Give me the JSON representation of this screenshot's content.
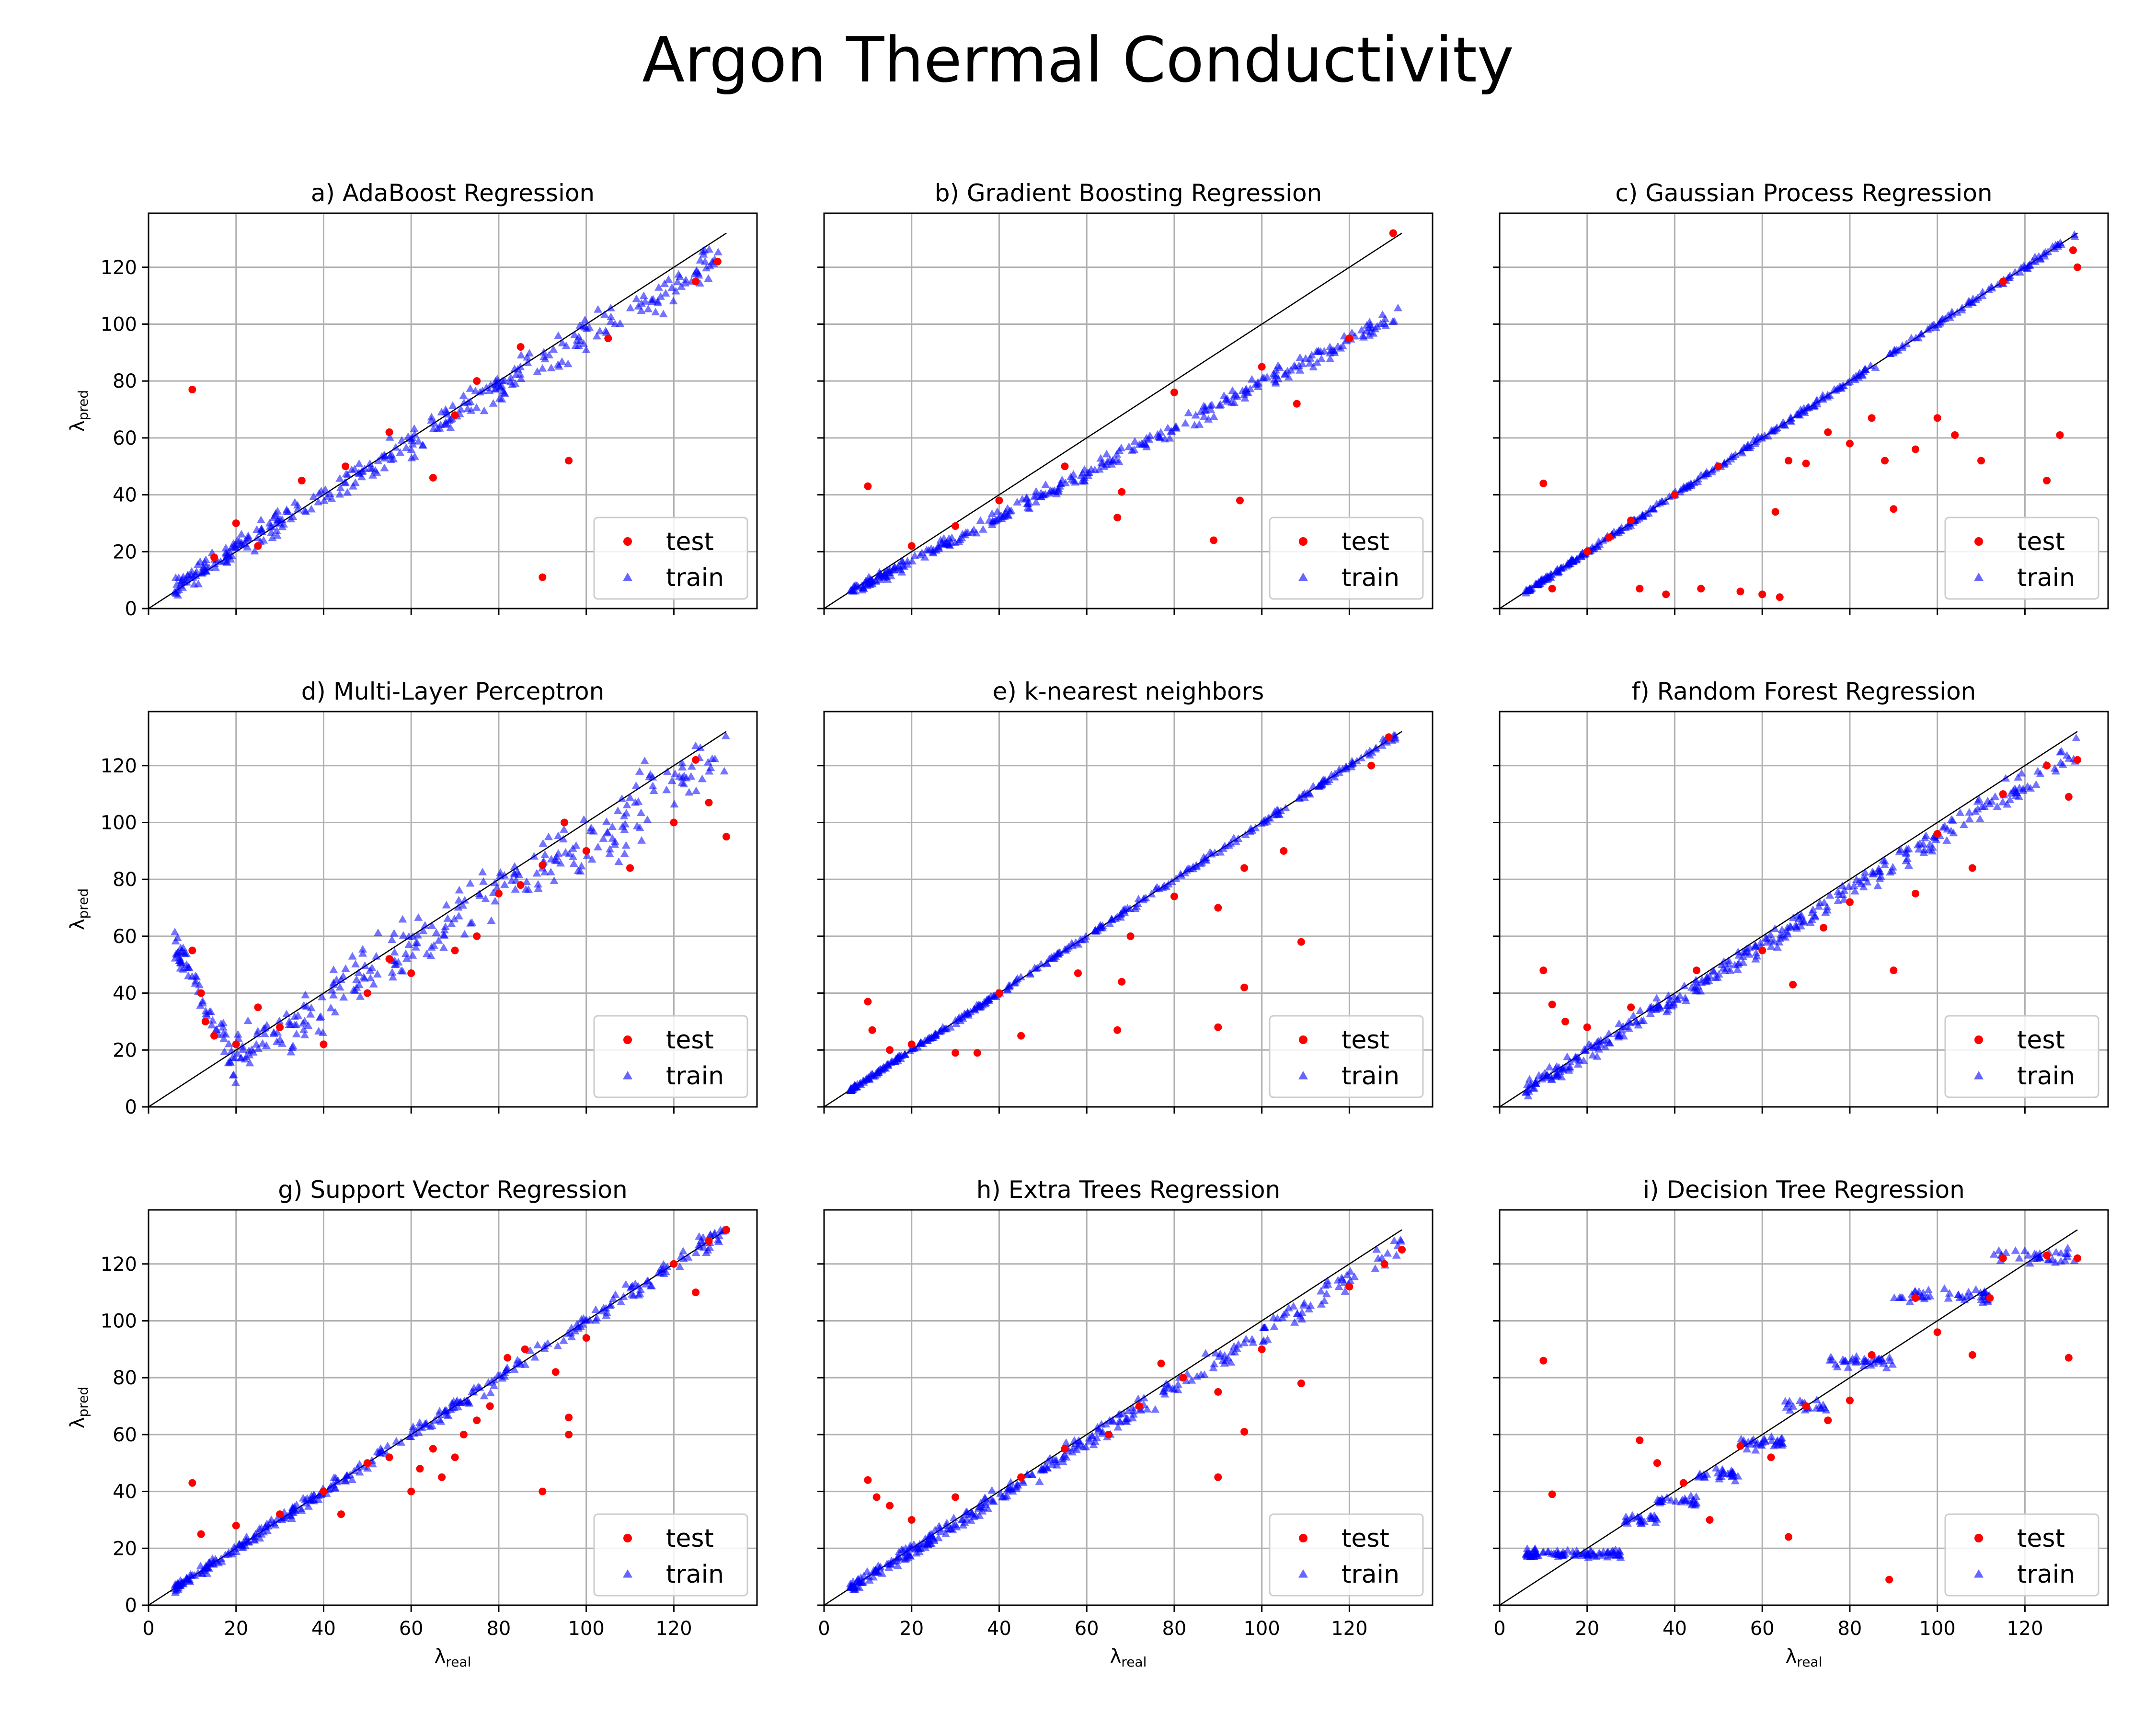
{
  "figure": {
    "suptitle": "Argon Thermal Conductivity",
    "xlabel_symbol": "λ",
    "xlabel_sub": "real",
    "ylabel_symbol": "λ",
    "ylabel_sub": "pred",
    "legend_labels": [
      "test",
      "train"
    ],
    "colors": {
      "test": "#ff0000",
      "train": "#0000ff",
      "identity": "#000000",
      "grid": "#b0b0b0"
    },
    "xticks": [
      "0",
      "20",
      "40",
      "60",
      "80",
      "100",
      "120"
    ],
    "yticks": [
      "0",
      "20",
      "40",
      "60",
      "80",
      "100",
      "120"
    ],
    "xlim": [
      0,
      139
    ],
    "ylim": [
      0,
      139
    ]
  },
  "chart_data": [
    {
      "type": "scatter",
      "title": "a) AdaBoost Regression",
      "series": [
        {
          "name": "test",
          "points": [
            [
              10,
              77
            ],
            [
              90,
              11
            ],
            [
              96,
              52
            ],
            [
              65,
              46
            ],
            [
              20,
              30
            ],
            [
              35,
              45
            ],
            [
              55,
              62
            ],
            [
              70,
              68
            ],
            [
              85,
              92
            ],
            [
              105,
              95
            ],
            [
              125,
              115
            ],
            [
              130,
              122
            ],
            [
              15,
              18
            ],
            [
              25,
              22
            ],
            [
              45,
              50
            ],
            [
              75,
              80
            ]
          ]
        },
        {
          "name": "train"
        }
      ]
    },
    {
      "type": "scatter",
      "title": "b) Gradient Boosting Regression",
      "series": [
        {
          "name": "test",
          "points": [
            [
              130,
              132
            ],
            [
              10,
              43
            ],
            [
              89,
              24
            ],
            [
              95,
              38
            ],
            [
              67,
              32
            ],
            [
              108,
              72
            ],
            [
              68,
              41
            ],
            [
              40,
              38
            ],
            [
              20,
              22
            ],
            [
              55,
              50
            ],
            [
              80,
              76
            ],
            [
              120,
              95
            ],
            [
              30,
              29
            ],
            [
              100,
              85
            ]
          ]
        },
        {
          "name": "train"
        }
      ]
    },
    {
      "type": "scatter",
      "title": "c) Gaussian Process Regression",
      "series": [
        {
          "name": "test",
          "points": [
            [
              10,
              44
            ],
            [
              12,
              7
            ],
            [
              32,
              7
            ],
            [
              38,
              5
            ],
            [
              46,
              7
            ],
            [
              55,
              6
            ],
            [
              60,
              5
            ],
            [
              64,
              4
            ],
            [
              63,
              34
            ],
            [
              66,
              52
            ],
            [
              70,
              51
            ],
            [
              75,
              62
            ],
            [
              80,
              58
            ],
            [
              85,
              67
            ],
            [
              88,
              52
            ],
            [
              90,
              35
            ],
            [
              95,
              56
            ],
            [
              100,
              67
            ],
            [
              104,
              61
            ],
            [
              110,
              52
            ],
            [
              125,
              45
            ],
            [
              128,
              61
            ],
            [
              132,
              120
            ],
            [
              131,
              126
            ],
            [
              115,
              115
            ],
            [
              40,
              40
            ],
            [
              50,
              50
            ],
            [
              20,
              20
            ],
            [
              25,
              25
            ],
            [
              30,
              31
            ]
          ]
        },
        {
          "name": "train"
        }
      ]
    },
    {
      "type": "scatter",
      "title": "d) Multi-Layer Perceptron",
      "series": [
        {
          "name": "test",
          "points": [
            [
              10,
              55
            ],
            [
              12,
              40
            ],
            [
              13,
              30
            ],
            [
              15,
              25
            ],
            [
              20,
              22
            ],
            [
              25,
              35
            ],
            [
              30,
              28
            ],
            [
              40,
              22
            ],
            [
              50,
              40
            ],
            [
              55,
              52
            ],
            [
              60,
              47
            ],
            [
              70,
              55
            ],
            [
              75,
              60
            ],
            [
              80,
              75
            ],
            [
              85,
              78
            ],
            [
              90,
              85
            ],
            [
              95,
              100
            ],
            [
              100,
              90
            ],
            [
              110,
              84
            ],
            [
              120,
              100
            ],
            [
              125,
              122
            ],
            [
              128,
              107
            ],
            [
              132,
              95
            ]
          ]
        },
        {
          "name": "train"
        }
      ]
    },
    {
      "type": "scatter",
      "title": "e) k-nearest neighbors",
      "series": [
        {
          "name": "test",
          "points": [
            [
              10,
              37
            ],
            [
              11,
              27
            ],
            [
              15,
              20
            ],
            [
              30,
              19
            ],
            [
              35,
              19
            ],
            [
              45,
              25
            ],
            [
              58,
              47
            ],
            [
              67,
              27
            ],
            [
              68,
              44
            ],
            [
              70,
              60
            ],
            [
              80,
              74
            ],
            [
              90,
              28
            ],
            [
              90,
              70
            ],
            [
              96,
              42
            ],
            [
              96,
              84
            ],
            [
              105,
              90
            ],
            [
              109,
              58
            ],
            [
              125,
              120
            ],
            [
              129,
              130
            ],
            [
              20,
              22
            ],
            [
              40,
              40
            ]
          ]
        },
        {
          "name": "train"
        }
      ]
    },
    {
      "type": "scatter",
      "title": "f) Random Forest Regression",
      "series": [
        {
          "name": "test",
          "points": [
            [
              10,
              48
            ],
            [
              12,
              36
            ],
            [
              15,
              30
            ],
            [
              20,
              28
            ],
            [
              30,
              35
            ],
            [
              45,
              48
            ],
            [
              60,
              55
            ],
            [
              67,
              43
            ],
            [
              74,
              63
            ],
            [
              80,
              72
            ],
            [
              90,
              48
            ],
            [
              95,
              75
            ],
            [
              100,
              96
            ],
            [
              108,
              84
            ],
            [
              115,
              110
            ],
            [
              125,
              120
            ],
            [
              130,
              109
            ],
            [
              132,
              122
            ]
          ]
        },
        {
          "name": "train"
        }
      ]
    },
    {
      "type": "scatter",
      "title": "g) Support Vector Regression",
      "series": [
        {
          "name": "test",
          "points": [
            [
              10,
              43
            ],
            [
              12,
              25
            ],
            [
              20,
              28
            ],
            [
              30,
              32
            ],
            [
              40,
              40
            ],
            [
              44,
              32
            ],
            [
              50,
              50
            ],
            [
              55,
              52
            ],
            [
              60,
              40
            ],
            [
              62,
              48
            ],
            [
              65,
              55
            ],
            [
              67,
              45
            ],
            [
              70,
              52
            ],
            [
              72,
              60
            ],
            [
              75,
              65
            ],
            [
              78,
              70
            ],
            [
              82,
              87
            ],
            [
              86,
              90
            ],
            [
              90,
              40
            ],
            [
              93,
              82
            ],
            [
              96,
              60
            ],
            [
              96,
              66
            ],
            [
              100,
              94
            ],
            [
              120,
              120
            ],
            [
              125,
              110
            ],
            [
              128,
              128
            ],
            [
              132,
              132
            ]
          ]
        },
        {
          "name": "train"
        }
      ]
    },
    {
      "type": "scatter",
      "title": "h) Extra Trees Regression",
      "series": [
        {
          "name": "test",
          "points": [
            [
              10,
              44
            ],
            [
              12,
              38
            ],
            [
              15,
              35
            ],
            [
              20,
              30
            ],
            [
              30,
              38
            ],
            [
              45,
              45
            ],
            [
              55,
              55
            ],
            [
              65,
              60
            ],
            [
              72,
              70
            ],
            [
              77,
              85
            ],
            [
              82,
              80
            ],
            [
              90,
              45
            ],
            [
              90,
              75
            ],
            [
              96,
              61
            ],
            [
              100,
              90
            ],
            [
              109,
              78
            ],
            [
              120,
              112
            ],
            [
              128,
              120
            ],
            [
              132,
              125
            ]
          ]
        },
        {
          "name": "train"
        }
      ]
    },
    {
      "type": "scatter",
      "title": "i) Decision Tree Regression",
      "series": [
        {
          "name": "test",
          "points": [
            [
              10,
              86
            ],
            [
              12,
              39
            ],
            [
              32,
              58
            ],
            [
              36,
              50
            ],
            [
              42,
              43
            ],
            [
              48,
              30
            ],
            [
              55,
              56
            ],
            [
              62,
              52
            ],
            [
              66,
              24
            ],
            [
              70,
              70
            ],
            [
              75,
              65
            ],
            [
              80,
              72
            ],
            [
              85,
              88
            ],
            [
              89,
              9
            ],
            [
              95,
              108
            ],
            [
              100,
              96
            ],
            [
              108,
              88
            ],
            [
              112,
              108
            ],
            [
              115,
              122
            ],
            [
              125,
              123
            ],
            [
              130,
              87
            ],
            [
              132,
              122
            ]
          ]
        },
        {
          "name": "train"
        }
      ]
    }
  ]
}
